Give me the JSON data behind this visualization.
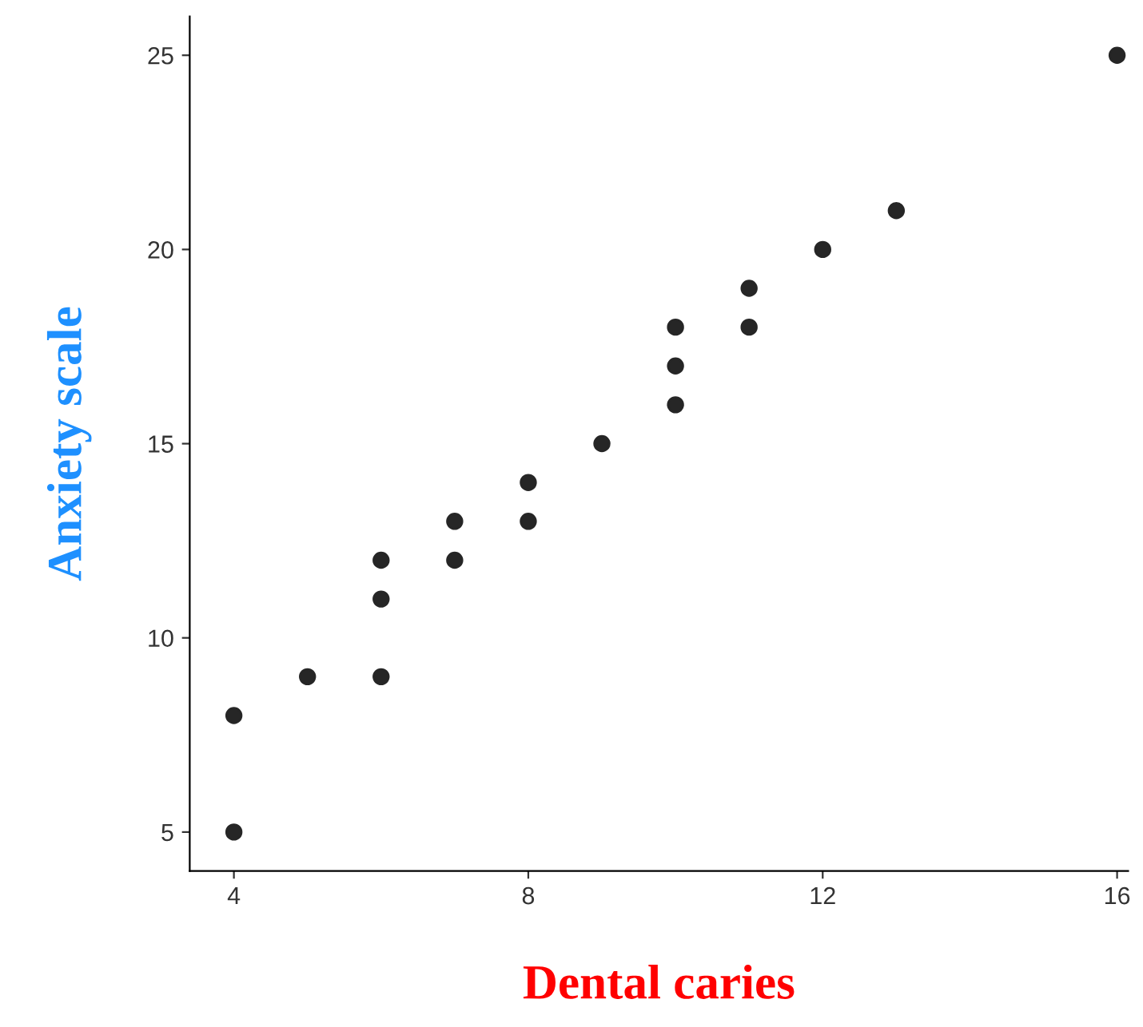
{
  "chart_data": {
    "type": "scatter",
    "xlabel": "Dental caries",
    "ylabel": "Anxiety scale",
    "x": [
      4,
      4,
      5,
      6,
      6,
      6,
      7,
      7,
      8,
      8,
      9,
      10,
      10,
      10,
      11,
      11,
      12,
      13,
      16
    ],
    "series": [
      {
        "color": "#262626",
        "values": [
          5,
          8,
          9,
          9,
          11,
          12,
          12,
          13,
          13,
          14,
          15,
          16,
          17,
          18,
          18,
          19,
          20,
          21,
          25
        ]
      }
    ],
    "xlim": [
      3.4,
      16.15
    ],
    "xticks": [
      4,
      8,
      12,
      16
    ],
    "ylim": [
      4,
      26
    ],
    "yticks": [
      5,
      10,
      15,
      20,
      25
    ],
    "grid": false,
    "legend": false,
    "marker": "circle"
  }
}
